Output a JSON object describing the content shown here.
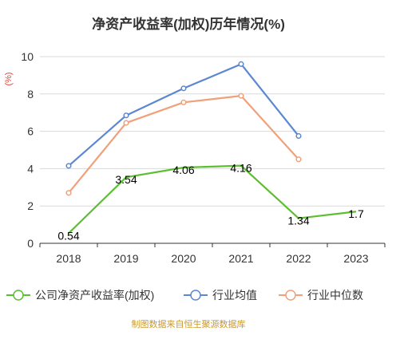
{
  "chart_data": {
    "type": "line",
    "title": "净资产收益率(加权)历年情况(%)",
    "unit_label": "(%)",
    "categories": [
      "2018",
      "2019",
      "2020",
      "2021",
      "2022",
      "2023"
    ],
    "ylim": [
      0,
      10
    ],
    "yticks": [
      0,
      2,
      4,
      6,
      8,
      10
    ],
    "grid": true,
    "legend_position": "bottom",
    "series": [
      {
        "name": "公司净资产收益率(加权)",
        "color": "#5bbf2f",
        "marker": "none",
        "values": [
          0.54,
          3.54,
          4.06,
          4.16,
          1.34,
          1.7
        ],
        "labels": [
          "0.54",
          "3.54",
          "4.06",
          "4.16",
          "1.34",
          "1.7"
        ]
      },
      {
        "name": "行业均值",
        "color": "#5b87d2",
        "marker": "circle",
        "values": [
          4.15,
          6.85,
          8.3,
          9.6,
          5.75,
          null
        ]
      },
      {
        "name": "行业中位数",
        "color": "#f0a07a",
        "marker": "circle",
        "values": [
          2.7,
          6.45,
          7.55,
          7.9,
          4.5,
          null
        ]
      }
    ],
    "source": "制图数据来自恒生聚源数据库"
  }
}
